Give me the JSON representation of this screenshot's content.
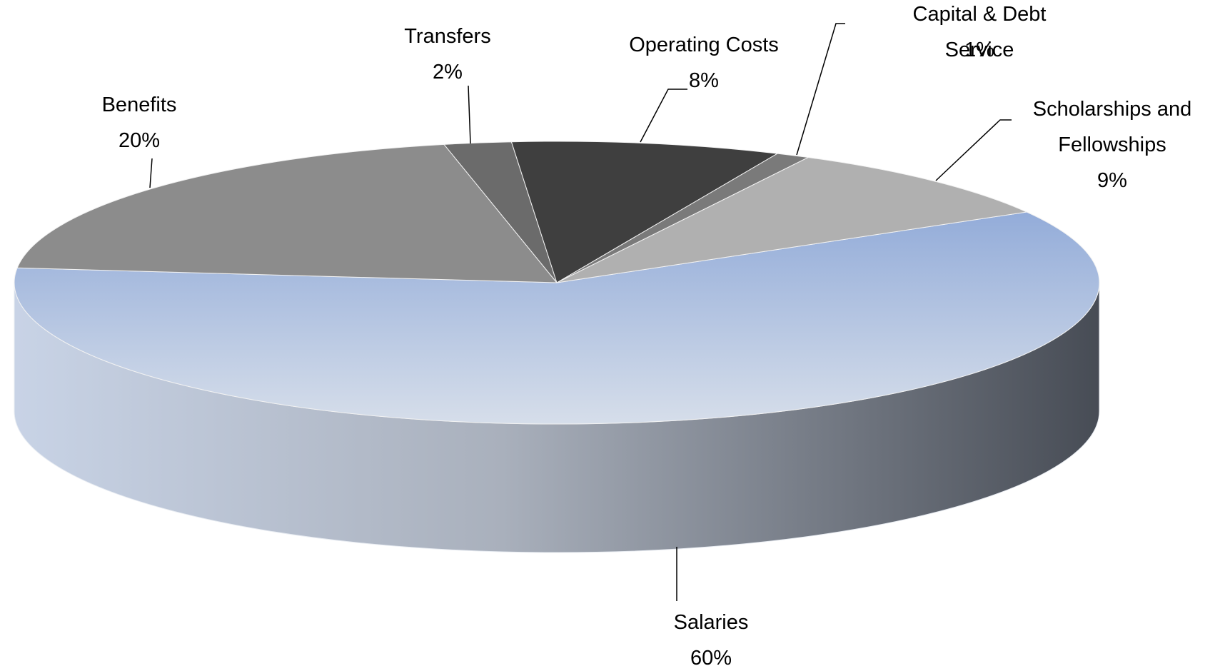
{
  "chart_data": {
    "type": "pie",
    "categories": [
      "Salaries",
      "Benefits",
      "Transfers",
      "Operating Costs",
      "Capital & Debt Service",
      "Scholarships and Fellowships"
    ],
    "values": [
      60,
      20,
      2,
      8,
      1,
      9
    ],
    "value_labels": [
      "60%",
      "20%",
      "2%",
      "8%",
      "1%",
      "9%"
    ],
    "colors": [
      "#93acd9",
      "#8c8c8c",
      "#6b6b6b",
      "#3f3f3f",
      "#7a7a7a",
      "#b0b0b0"
    ]
  }
}
